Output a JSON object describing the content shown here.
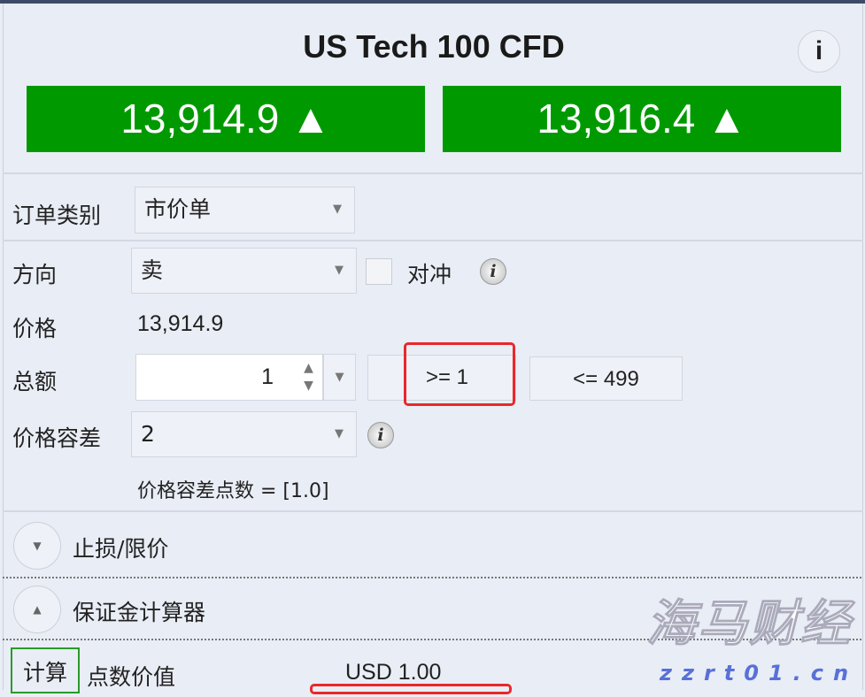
{
  "instrument": {
    "title": "US Tech 100 CFD",
    "info_label": "i"
  },
  "prices": {
    "sell": "13,914.9",
    "buy": "13,916.4",
    "sell_trend": "▲",
    "buy_trend": "▲",
    "color": "#009a00"
  },
  "form": {
    "order_type": {
      "label": "订单类别",
      "value": "市价单"
    },
    "direction": {
      "label": "方向",
      "value": "卖",
      "hedge_label": "对冲",
      "hedge_checked": false
    },
    "price": {
      "label": "价格",
      "value": "13,914.9"
    },
    "amount": {
      "label": "总额",
      "value": "1",
      "min": ">= 1",
      "max": "<= 499"
    },
    "tolerance": {
      "label": "价格容差",
      "value": "2",
      "points_text": "价格容差点数 = [1.0]"
    }
  },
  "sections": {
    "stop_limit": "止损/限价",
    "margin_calculator": "保证金计算器"
  },
  "calculator": {
    "button": "计算",
    "pip_value_label": "点数价值",
    "pip_value": "USD 1.00"
  },
  "watermark": {
    "name": "海马财经",
    "url": "zzrt01.cn"
  }
}
